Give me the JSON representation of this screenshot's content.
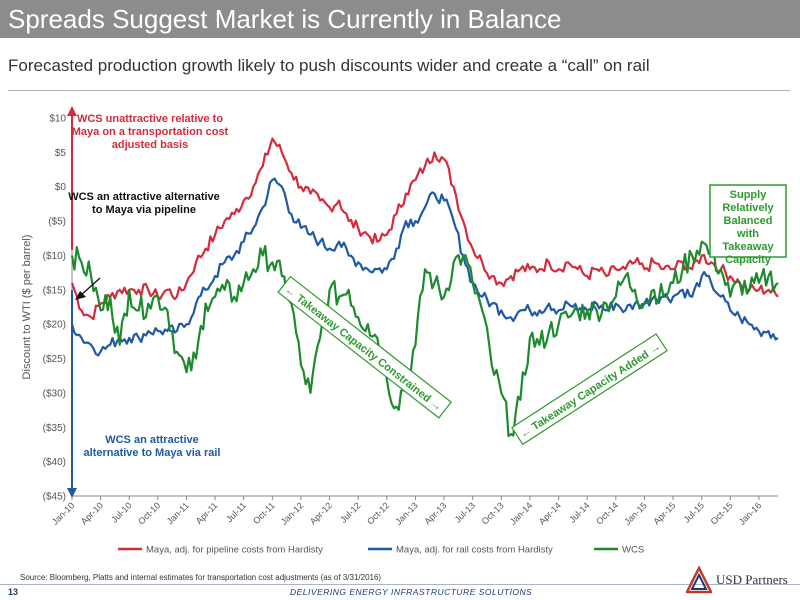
{
  "header": {
    "title": "Spreads Suggest Market is Currently in Balance",
    "subtitle": "Forecasted production growth likely to push discounts wider and create a “call” on rail"
  },
  "footer": {
    "source": "Source:  Bloomberg, Platts and internal estimates for transportation cost adjustments (as of 3/31/2016)",
    "page_number": "13",
    "tagline": "DELIVERING ENERGY INFRASTRUCTURE SOLUTIONS",
    "logo_text": "USD Partners"
  },
  "colors": {
    "pipeline": "#d62b3c",
    "rail": "#1f5aa6",
    "wcs": "#1e8a2e",
    "green_box": "#2e9a2e"
  },
  "chart_data": {
    "type": "line",
    "ylabel": "Discount to WTI ($ per barrel)",
    "ylim": [
      -45,
      10
    ],
    "y_ticks": [
      10,
      5,
      0,
      -5,
      -10,
      -15,
      -20,
      -25,
      -30,
      -35,
      -40,
      -45
    ],
    "y_tick_labels": [
      "$10",
      "$5",
      "$0",
      "($5)",
      "($10)",
      "($15)",
      "($20)",
      "($25)",
      "($30)",
      "($35)",
      "($40)",
      "($45)"
    ],
    "x_tick_labels": [
      "Jan-10",
      "Apr-10",
      "Jul-10",
      "Oct-10",
      "Jan-11",
      "Apr-11",
      "Jul-11",
      "Oct-11",
      "Jan-12",
      "Apr-12",
      "Jul-12",
      "Oct-12",
      "Jan-13",
      "Apr-13",
      "Jul-13",
      "Oct-13",
      "Jan-14",
      "Apr-14",
      "Jul-14",
      "Oct-14",
      "Jan-15",
      "Apr-15",
      "Jul-15",
      "Oct-15",
      "Jan-16"
    ],
    "x_dates": [
      "2010-01",
      "2010-02",
      "2010-03",
      "2010-04",
      "2010-05",
      "2010-06",
      "2010-07",
      "2010-08",
      "2010-09",
      "2010-10",
      "2010-11",
      "2010-12",
      "2011-01",
      "2011-02",
      "2011-03",
      "2011-04",
      "2011-05",
      "2011-06",
      "2011-07",
      "2011-08",
      "2011-09",
      "2011-10",
      "2011-11",
      "2011-12",
      "2012-01",
      "2012-02",
      "2012-03",
      "2012-04",
      "2012-05",
      "2012-06",
      "2012-07",
      "2012-08",
      "2012-09",
      "2012-10",
      "2012-11",
      "2012-12",
      "2013-01",
      "2013-02",
      "2013-03",
      "2013-04",
      "2013-05",
      "2013-06",
      "2013-07",
      "2013-08",
      "2013-09",
      "2013-10",
      "2013-11",
      "2013-12",
      "2014-01",
      "2014-02",
      "2014-03",
      "2014-04",
      "2014-05",
      "2014-06",
      "2014-07",
      "2014-08",
      "2014-09",
      "2014-10",
      "2014-11",
      "2014-12",
      "2015-01",
      "2015-02",
      "2015-03",
      "2015-04",
      "2015-05",
      "2015-06",
      "2015-07",
      "2015-08",
      "2015-09",
      "2015-10",
      "2015-11",
      "2015-12",
      "2016-01",
      "2016-02",
      "2016-03"
    ],
    "series": [
      {
        "name": "Maya, adj. for pipeline costs from Hardisty",
        "color": "#d62b3c",
        "values": [
          -14,
          -18,
          -19,
          -17,
          -16,
          -15,
          -15,
          -15,
          -15,
          -16,
          -15,
          -16,
          -14,
          -11,
          -9,
          -7,
          -5,
          -4,
          -2,
          0,
          3,
          7,
          5,
          2,
          0,
          -1,
          -2,
          -3,
          -2,
          -5,
          -6,
          -7,
          -8,
          -7,
          -4,
          -1,
          1,
          3,
          5,
          4,
          0,
          -5,
          -9,
          -11,
          -13,
          -14,
          -13,
          -12,
          -12,
          -12,
          -11,
          -12,
          -11,
          -12,
          -13,
          -12,
          -13,
          -12,
          -12,
          -11,
          -12,
          -11,
          -12,
          -12,
          -11,
          -12,
          -10,
          -11,
          -12,
          -13,
          -14,
          -15,
          -15,
          -15,
          -16
        ]
      },
      {
        "name": "Maya, adj. for rail costs from Hardisty",
        "color": "#1f5aa6",
        "values": [
          -20,
          -22,
          -23,
          -24,
          -23,
          -22,
          -22,
          -22,
          -21,
          -21,
          -21,
          -21,
          -20,
          -17,
          -15,
          -13,
          -11,
          -10,
          -8,
          -6,
          -3,
          1,
          0,
          -4,
          -6,
          -7,
          -8,
          -9,
          -8,
          -10,
          -11,
          -12,
          -12,
          -12,
          -9,
          -5,
          -5,
          -3,
          -1,
          -2,
          -5,
          -10,
          -14,
          -16,
          -17,
          -18,
          -19,
          -18,
          -18,
          -18,
          -17,
          -18,
          -17,
          -18,
          -18,
          -17,
          -18,
          -17,
          -18,
          -17,
          -17,
          -16,
          -16,
          -16,
          -15,
          -16,
          -13,
          -14,
          -16,
          -18,
          -19,
          -20,
          -21,
          -21,
          -22
        ]
      },
      {
        "name": "WCS",
        "color": "#1e8a2e",
        "values": [
          -10,
          -11,
          -13,
          -18,
          -16,
          -23,
          -15,
          -18,
          -17,
          -16,
          -18,
          -24,
          -27,
          -25,
          -17,
          -16,
          -15,
          -16,
          -14,
          -12,
          -10,
          -11,
          -13,
          -17,
          -26,
          -30,
          -22,
          -15,
          -16,
          -15,
          -19,
          -20,
          -22,
          -28,
          -32,
          -28,
          -23,
          -12,
          -14,
          -16,
          -11,
          -10,
          -14,
          -18,
          -26,
          -30,
          -36,
          -31,
          -22,
          -23,
          -21,
          -20,
          -19,
          -18,
          -18,
          -18,
          -17,
          -16,
          -13,
          -15,
          -17,
          -15,
          -16,
          -14,
          -12,
          -10,
          -8,
          -10,
          -12,
          -16,
          -14,
          -15,
          -14,
          -13,
          -14
        ]
      }
    ],
    "legend_position": "bottom",
    "grid": false,
    "annotations": {
      "red_note": "WCS unattractive relative to Maya on a transportation cost adjusted basis",
      "black_note": "WCS an attractive alternative to Maya via pipeline",
      "blue_note": "WCS an attractive alternative to Maya via rail",
      "green_box": "Supply Relatively Balanced with Takeaway Capacity",
      "constrained_label": "← Takeaway Capacity Constrained →",
      "added_label": "← Takeaway Capacity Added →"
    }
  }
}
